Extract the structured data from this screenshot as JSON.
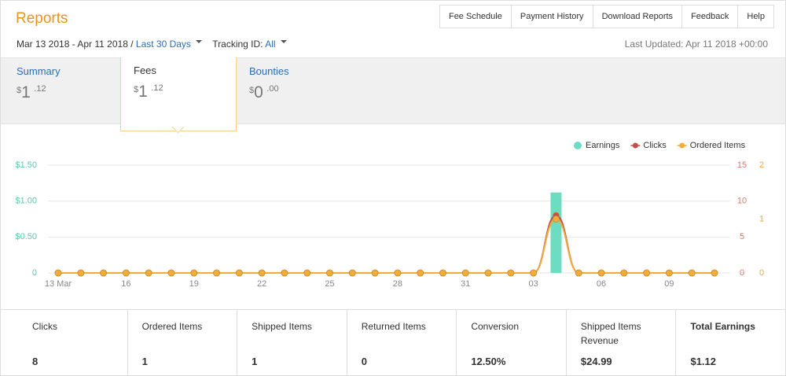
{
  "header": {
    "title": "Reports",
    "nav": [
      "Fee Schedule",
      "Payment History",
      "Download Reports",
      "Feedback",
      "Help"
    ],
    "date_range": "Mar 13 2018 - Apr 11 2018 /",
    "period": "Last 30 Days",
    "tracking_label": "Tracking ID:",
    "tracking_value": "All",
    "last_updated": "Last Updated: Apr 11 2018 +00:00"
  },
  "tabs": [
    {
      "label": "Summary",
      "currency": "$",
      "whole": "1",
      "fraction": ".12"
    },
    {
      "label": "Fees",
      "currency": "$",
      "whole": "1",
      "fraction": ".12"
    },
    {
      "label": "Bounties",
      "currency": "$",
      "whole": "0",
      "fraction": ".00"
    }
  ],
  "chart_data": {
    "type": "combo",
    "categories": [
      "13 Mar",
      null,
      null,
      "16",
      null,
      null,
      "19",
      null,
      null,
      "22",
      null,
      null,
      "25",
      null,
      null,
      "28",
      null,
      null,
      "31",
      null,
      null,
      "03",
      null,
      null,
      "06",
      null,
      null,
      "09",
      null,
      null
    ],
    "series": [
      {
        "name": "Earnings",
        "type": "bar",
        "color": "#6ddcc0",
        "values": [
          0,
          0,
          0,
          0,
          0,
          0,
          0,
          0,
          0,
          0,
          0,
          0,
          0,
          0,
          0,
          0,
          0,
          0,
          0,
          0,
          0,
          0,
          1.12,
          0,
          0,
          0,
          0,
          0,
          0,
          0
        ]
      },
      {
        "name": "Clicks",
        "type": "line",
        "axis": "y2",
        "color": "#c0504d",
        "values": [
          0,
          0,
          0,
          0,
          0,
          0,
          0,
          0,
          0,
          0,
          0,
          0,
          0,
          0,
          0,
          0,
          0,
          0,
          0,
          0,
          0,
          0,
          8,
          0,
          0,
          0,
          0,
          0,
          0,
          0
        ]
      },
      {
        "name": "Ordered Items",
        "type": "line",
        "axis": "y3",
        "color": "#f0ad3c",
        "values": [
          0,
          0,
          0,
          0,
          0,
          0,
          0,
          0,
          0,
          0,
          0,
          0,
          0,
          0,
          0,
          0,
          0,
          0,
          0,
          0,
          0,
          0,
          1,
          0,
          0,
          0,
          0,
          0,
          0,
          0
        ]
      }
    ],
    "ylim": [
      0,
      1.5
    ],
    "yticks": [
      0,
      {
        "value": 0.5,
        "label": "$0.50"
      },
      {
        "value": 1,
        "label": "$1.00"
      },
      {
        "value": 1.5,
        "label": "$1.50"
      }
    ],
    "y2lim": [
      0,
      15
    ],
    "y2ticks": [
      0,
      5,
      10,
      15
    ],
    "y3lim": [
      0,
      2
    ],
    "y3ticks": [
      0,
      1,
      2
    ],
    "grid": true,
    "legend": "top-right"
  },
  "stats": [
    {
      "label": "Clicks",
      "value": "8"
    },
    {
      "label": "Ordered Items",
      "value": "1"
    },
    {
      "label": "Shipped Items",
      "value": "1"
    },
    {
      "label": "Returned Items",
      "value": "0"
    },
    {
      "label": "Conversion",
      "value": "12.50%"
    },
    {
      "label": "Shipped Items Revenue",
      "value": "$24.99"
    },
    {
      "label": "Total Earnings",
      "value": "$1.12"
    }
  ]
}
